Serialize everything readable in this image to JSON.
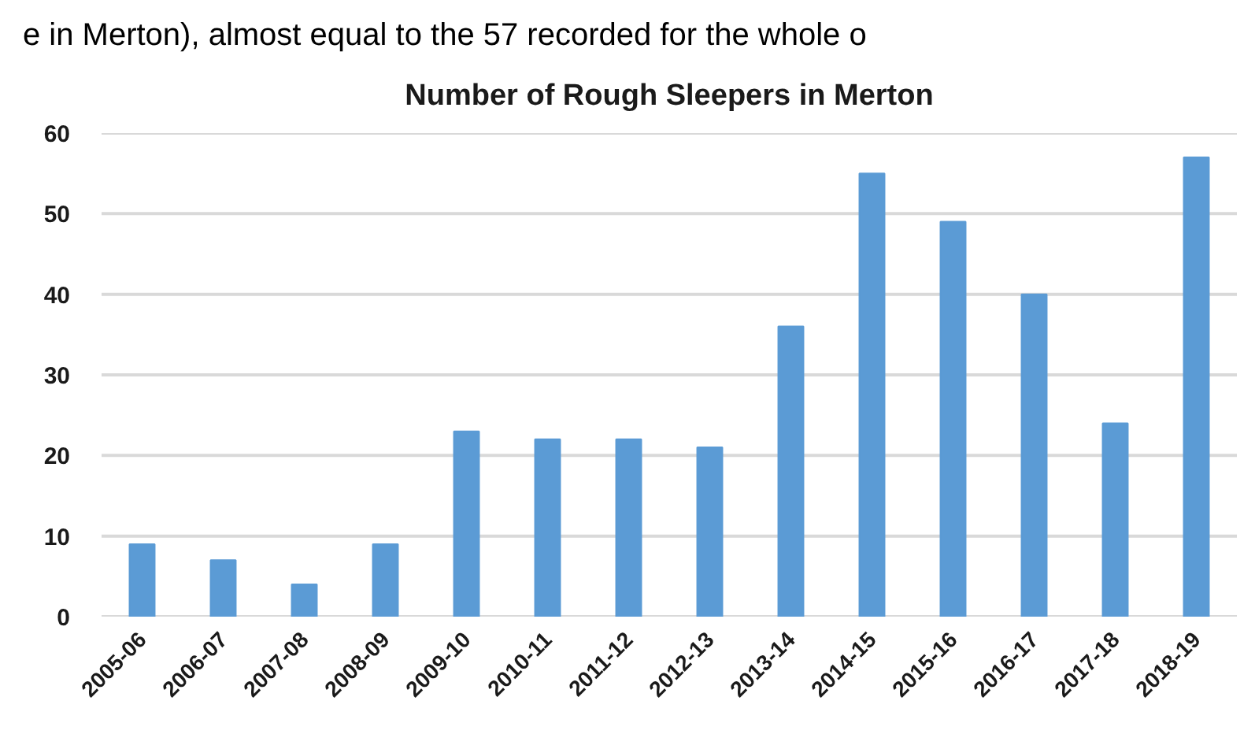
{
  "chart_data": {
    "type": "bar",
    "title": "Number of Rough Sleepers in Merton",
    "annotations": [
      "e in Merton), almost equal to the 57 recorded for the whole o"
    ],
    "categories": [
      "2005-06",
      "2006-07",
      "2007-08",
      "2008-09",
      "2009-10",
      "2010-11",
      "2011-12",
      "2012-13",
      "2013-14",
      "2014-15",
      "2015-16",
      "2016-17",
      "2017-18",
      "2018-19"
    ],
    "values": [
      9,
      7,
      4,
      9,
      23,
      22,
      22,
      21,
      36,
      55,
      49,
      40,
      24,
      57
    ],
    "color": "#5b9bd5",
    "ylim": [
      0,
      60
    ],
    "yticks": [
      0,
      10,
      20,
      30,
      40,
      50,
      60
    ],
    "grid": "y"
  }
}
